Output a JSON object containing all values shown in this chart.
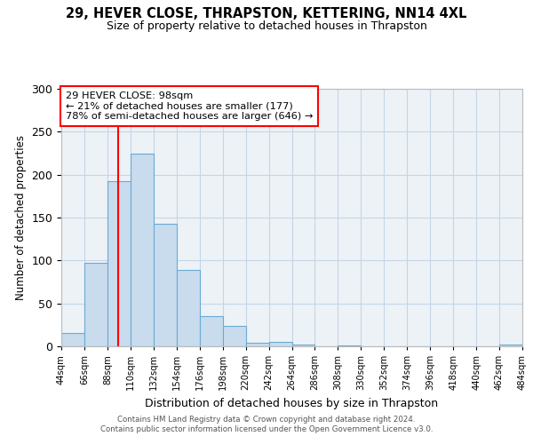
{
  "title": "29, HEVER CLOSE, THRAPSTON, KETTERING, NN14 4XL",
  "subtitle": "Size of property relative to detached houses in Thrapston",
  "xlabel": "Distribution of detached houses by size in Thrapston",
  "ylabel": "Number of detached properties",
  "bar_color": "#c8dced",
  "bar_edge_color": "#6aaad4",
  "bin_edges": [
    44,
    66,
    88,
    110,
    132,
    154,
    176,
    198,
    220,
    242,
    264,
    286,
    308,
    330,
    352,
    374,
    396,
    418,
    440,
    462,
    484
  ],
  "bar_heights": [
    16,
    97,
    192,
    225,
    143,
    89,
    35,
    24,
    4,
    5,
    2,
    0,
    1,
    0,
    0,
    0,
    0,
    0,
    0,
    2
  ],
  "red_line_x": 98,
  "ylim": [
    0,
    300
  ],
  "yticks": [
    0,
    50,
    100,
    150,
    200,
    250,
    300
  ],
  "xtick_labels": [
    "44sqm",
    "66sqm",
    "88sqm",
    "110sqm",
    "132sqm",
    "154sqm",
    "176sqm",
    "198sqm",
    "220sqm",
    "242sqm",
    "264sqm",
    "286sqm",
    "308sqm",
    "330sqm",
    "352sqm",
    "374sqm",
    "396sqm",
    "418sqm",
    "440sqm",
    "462sqm",
    "484sqm"
  ],
  "annotation_title": "29 HEVER CLOSE: 98sqm",
  "annotation_line1": "← 21% of detached houses are smaller (177)",
  "annotation_line2": "78% of semi-detached houses are larger (646) →",
  "footer_line1": "Contains HM Land Registry data © Crown copyright and database right 2024.",
  "footer_line2": "Contains public sector information licensed under the Open Government Licence v3.0.",
  "background_color": "#edf2f7"
}
